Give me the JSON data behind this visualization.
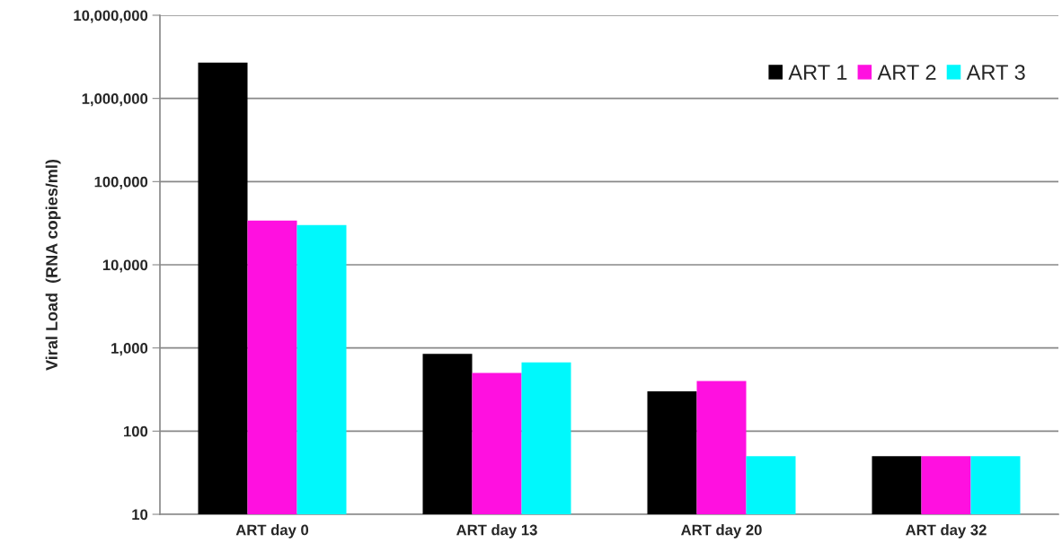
{
  "chart_data": {
    "type": "bar",
    "ylabel": "Viral Load  (RNA copies/ml)",
    "categories": [
      "ART day 0",
      "ART day 13",
      "ART day 20",
      "ART day 32"
    ],
    "series": [
      {
        "name": "ART 1",
        "color": "#000000",
        "values": [
          2700000,
          850,
          300,
          50
        ]
      },
      {
        "name": "ART 2",
        "color": "#ff10e0",
        "values": [
          34000,
          500,
          400,
          50
        ]
      },
      {
        "name": "ART 3",
        "color": "#00f8fc",
        "values": [
          30000,
          670,
          50,
          50
        ]
      }
    ],
    "log": "y",
    "ylim": [
      10,
      10000000
    ],
    "yticks": [
      {
        "value": 10,
        "label": "10"
      },
      {
        "value": 100,
        "label": "100"
      },
      {
        "value": 1000,
        "label": "1,000"
      },
      {
        "value": 10000,
        "label": "10,000"
      },
      {
        "value": 100000,
        "label": "100,000"
      },
      {
        "value": 1000000,
        "label": "1,000,000"
      },
      {
        "value": 10000000,
        "label": "10,000,000"
      }
    ],
    "grid": "y",
    "legend": "top right"
  }
}
